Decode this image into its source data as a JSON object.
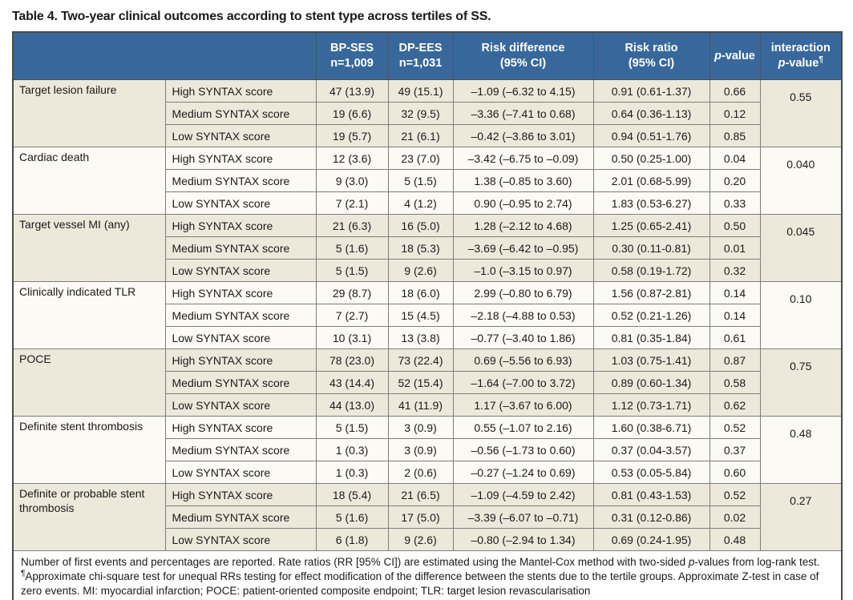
{
  "title": "Table 4. Two-year clinical outcomes according to stent type across tertiles of SS.",
  "colors": {
    "header_bg": "#38689b",
    "header_text": "#ffffff",
    "group_shaded_bg": "#ece9da",
    "group_plain_bg": "#fbfaf4",
    "border": "#7d7d7d",
    "outer_border": "#4a4a4a"
  },
  "header": {
    "bp_ses": {
      "line1": "BP-SES",
      "line2": "n=1,009"
    },
    "dp_ees": {
      "line1": "DP-EES",
      "line2": "n=1,031"
    },
    "risk_difference": {
      "line1": "Risk difference",
      "line2": "(95% CI)"
    },
    "risk_ratio": {
      "line1": "Risk ratio",
      "line2": "(95% CI)"
    },
    "p_value": {
      "italic": "p",
      "rest": "-value"
    },
    "interaction": {
      "line1": "interaction",
      "italic": "p",
      "rest": "-value",
      "sup": "¶"
    }
  },
  "groups": [
    {
      "outcome": "Target lesion failure",
      "interaction_p": "0.55",
      "rows": [
        {
          "tertile": "High SYNTAX score",
          "bp_ses": "47 (13.9)",
          "dp_ees": "49 (15.1)",
          "risk_diff": "–1.09 (–6.32 to 4.15)",
          "risk_ratio": "0.91 (0.61-1.37)",
          "p": "0.66"
        },
        {
          "tertile": "Medium SYNTAX score",
          "bp_ses": "19 (6.6)",
          "dp_ees": "32 (9.5)",
          "risk_diff": "–3.36 (–7.41 to 0.68)",
          "risk_ratio": "0.64 (0.36-1.13)",
          "p": "0.12"
        },
        {
          "tertile": "Low SYNTAX score",
          "bp_ses": "19 (5.7)",
          "dp_ees": "21 (6.1)",
          "risk_diff": "–0.42 (–3.86 to 3.01)",
          "risk_ratio": "0.94 (0.51-1.76)",
          "p": "0.85"
        }
      ]
    },
    {
      "outcome": "Cardiac death",
      "interaction_p": "0.040",
      "rows": [
        {
          "tertile": "High SYNTAX score",
          "bp_ses": "12 (3.6)",
          "dp_ees": "23 (7.0)",
          "risk_diff": "–3.42 (–6.75 to –0.09)",
          "risk_ratio": "0.50 (0.25-1.00)",
          "p": "0.04"
        },
        {
          "tertile": "Medium SYNTAX score",
          "bp_ses": "9 (3.0)",
          "dp_ees": "5 (1.5)",
          "risk_diff": "1.38 (–0.85 to 3.60)",
          "risk_ratio": "2.01 (0.68-5.99)",
          "p": "0.20"
        },
        {
          "tertile": "Low SYNTAX score",
          "bp_ses": "7 (2.1)",
          "dp_ees": "4 (1.2)",
          "risk_diff": "0.90 (–0.95 to 2.74)",
          "risk_ratio": "1.83 (0.53-6.27)",
          "p": "0.33"
        }
      ]
    },
    {
      "outcome": "Target vessel MI (any)",
      "interaction_p": "0.045",
      "rows": [
        {
          "tertile": "High SYNTAX score",
          "bp_ses": "21 (6.3)",
          "dp_ees": "16 (5.0)",
          "risk_diff": "1.28 (–2.12 to 4.68)",
          "risk_ratio": "1.25 (0.65-2.41)",
          "p": "0.50"
        },
        {
          "tertile": "Medium SYNTAX score",
          "bp_ses": "5 (1.6)",
          "dp_ees": "18 (5.3)",
          "risk_diff": "–3.69 (–6.42 to –0.95)",
          "risk_ratio": "0.30 (0.11-0.81)",
          "p": "0.01"
        },
        {
          "tertile": "Low SYNTAX score",
          "bp_ses": "5 (1.5)",
          "dp_ees": "9 (2.6)",
          "risk_diff": "–1.0 (–3.15 to 0.97)",
          "risk_ratio": "0.58 (0.19-1.72)",
          "p": "0.32"
        }
      ]
    },
    {
      "outcome": "Clinically indicated TLR",
      "interaction_p": "0.10",
      "rows": [
        {
          "tertile": "High SYNTAX score",
          "bp_ses": "29 (8.7)",
          "dp_ees": "18 (6.0)",
          "risk_diff": "2.99 (–0.80 to 6.79)",
          "risk_ratio": "1.56 (0.87-2.81)",
          "p": "0.14"
        },
        {
          "tertile": "Medium SYNTAX score",
          "bp_ses": "7 (2.7)",
          "dp_ees": "15 (4.5)",
          "risk_diff": "–2.18 (–4.88 to 0.53)",
          "risk_ratio": "0.52 (0.21-1.26)",
          "p": "0.14"
        },
        {
          "tertile": "Low SYNTAX score",
          "bp_ses": "10 (3.1)",
          "dp_ees": "13 (3.8)",
          "risk_diff": "–0.77 (–3.40 to 1.86)",
          "risk_ratio": "0.81 (0.35-1.84)",
          "p": "0.61"
        }
      ]
    },
    {
      "outcome": "POCE",
      "interaction_p": "0.75",
      "rows": [
        {
          "tertile": "High SYNTAX score",
          "bp_ses": "78 (23.0)",
          "dp_ees": "73 (22.4)",
          "risk_diff": "0.69 (–5.56 to 6.93)",
          "risk_ratio": "1.03 (0.75-1.41)",
          "p": "0.87"
        },
        {
          "tertile": "Medium SYNTAX score",
          "bp_ses": "43 (14.4)",
          "dp_ees": "52 (15.4)",
          "risk_diff": "–1.64 (–7.00 to 3.72)",
          "risk_ratio": "0.89 (0.60-1.34)",
          "p": "0.58"
        },
        {
          "tertile": "Low SYNTAX score",
          "bp_ses": "44 (13.0)",
          "dp_ees": "41 (11.9)",
          "risk_diff": "1.17 (–3.67 to 6.00)",
          "risk_ratio": "1.12 (0.73-1.71)",
          "p": "0.62"
        }
      ]
    },
    {
      "outcome": "Definite stent thrombosis",
      "interaction_p": "0.48",
      "rows": [
        {
          "tertile": "High SYNTAX score",
          "bp_ses": "5 (1.5)",
          "dp_ees": "3 (0.9)",
          "risk_diff": "0.55 (–1.07 to 2.16)",
          "risk_ratio": "1.60 (0.38-6.71)",
          "p": "0.52"
        },
        {
          "tertile": "Medium SYNTAX score",
          "bp_ses": "1 (0.3)",
          "dp_ees": "3 (0.9)",
          "risk_diff": "–0.56 (–1.73 to 0.60)",
          "risk_ratio": "0.37 (0.04-3.57)",
          "p": "0.37"
        },
        {
          "tertile": "Low SYNTAX score",
          "bp_ses": "1 (0.3)",
          "dp_ees": "2 (0.6)",
          "risk_diff": "–0.27 (–1.24 to 0.69)",
          "risk_ratio": "0.53 (0.05-5.84)",
          "p": "0.60"
        }
      ]
    },
    {
      "outcome": "Definite or probable stent thrombosis",
      "interaction_p": "0.27",
      "rows": [
        {
          "tertile": "High SYNTAX score",
          "bp_ses": "18 (5.4)",
          "dp_ees": "21 (6.5)",
          "risk_diff": "–1.09 (–4.59 to 2.42)",
          "risk_ratio": "0.81 (0.43-1.53)",
          "p": "0.52"
        },
        {
          "tertile": "Medium SYNTAX score",
          "bp_ses": "5 (1.6)",
          "dp_ees": "17 (5.0)",
          "risk_diff": "–3.39 (–6.07 to –0.71)",
          "risk_ratio": "0.31 (0.12-0.86)",
          "p": "0.02"
        },
        {
          "tertile": "Low SYNTAX score",
          "bp_ses": "6 (1.8)",
          "dp_ees": "9 (2.6)",
          "risk_diff": "–0.80 (–2.94 to 1.34)",
          "risk_ratio": "0.69 (0.24-1.95)",
          "p": "0.48"
        }
      ]
    }
  ],
  "footnote": {
    "seg1": "Number of first events and percentages are reported. Rate ratios (RR [95% CI]) are estimated using the Mantel-Cox method with two-sided ",
    "p_italic": "p",
    "seg2": "-values from log-rank test. ",
    "pilcrow": "¶",
    "seg3": "Approximate chi-square test for unequal RRs testing for effect modification of the difference between the stents due to the tertile groups. Approximate Z-test in case of zero events. MI: myocardial infarction; POCE: patient-oriented composite endpoint; TLR: target lesion revascularisation"
  }
}
